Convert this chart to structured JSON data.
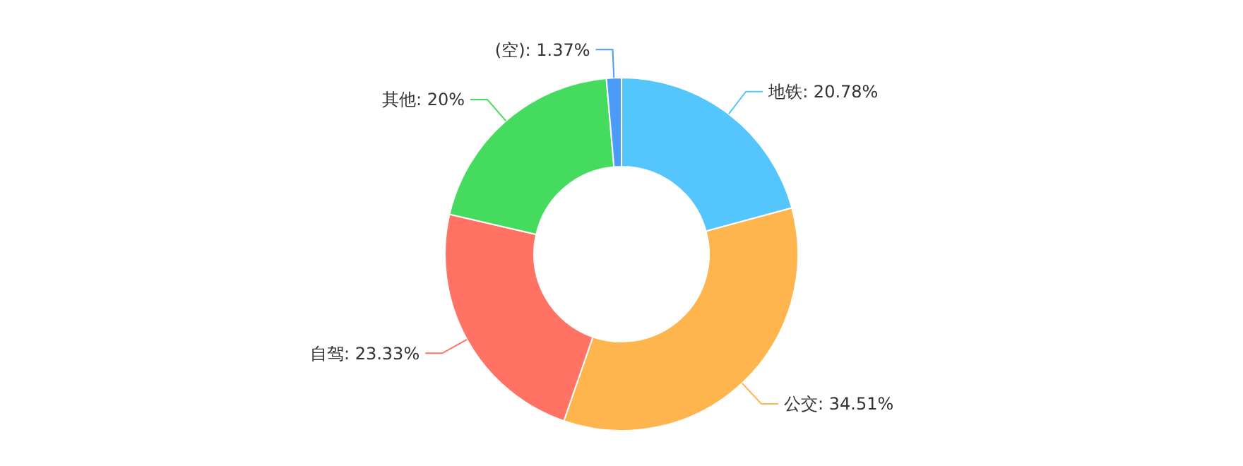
{
  "chart_data": {
    "type": "donut",
    "categories": [
      "地铁",
      "公交",
      "自驾",
      "其他",
      "(空)"
    ],
    "values": [
      20.78,
      34.51,
      23.33,
      20,
      1.37
    ],
    "value_labels": [
      "20.78%",
      "34.51%",
      "23.33%",
      "20%",
      "1.37%"
    ],
    "colors": [
      "#55c6fd",
      "#ffb54d",
      "#ff7264",
      "#45db5f",
      "#4a9cf7"
    ]
  }
}
